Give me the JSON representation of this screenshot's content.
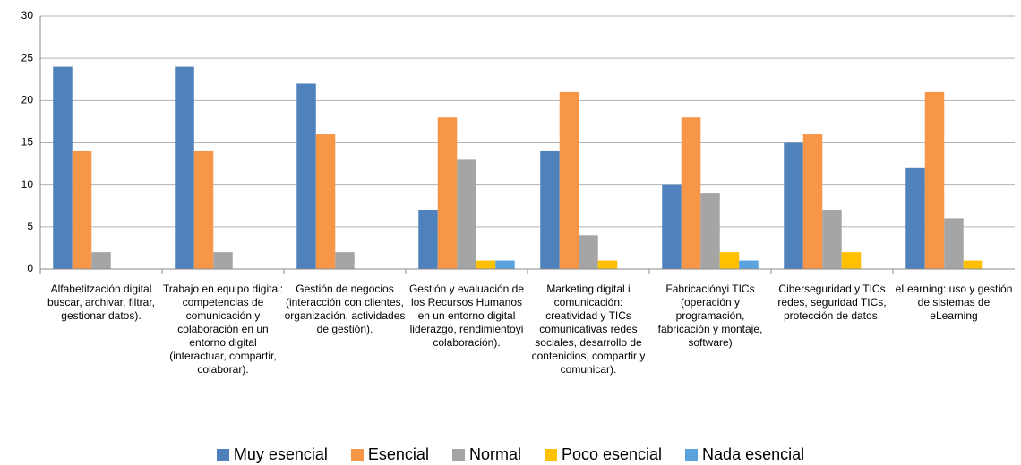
{
  "chart_data": {
    "type": "bar",
    "categories": [
      "Alfabetitzación digital buscar, archivar, filtrar, gestionar datos).",
      "Trabajo en equipo digital: competencias de comunicación y colaboración en un entorno digital (interactuar, compartir, colaborar).",
      "Gestión de negocios (interacción con clientes, organización, actividades de gestión).",
      "Gestión y evaluación de los Recursos Humanos en un entorno digital liderazgo, rendimientoyi colaboración).",
      "Marketing digital i comunicación: creatividad y TICs comunicativas redes sociales, desarrollo de contenidios, compartir y comunicar).",
      "Fabricaciónyi TICs (operación y programación, fabricación y montaje, software)",
      "Ciberseguridad y TICs redes, seguridad TICs, protección de datos.",
      "eLearning: uso y gestión de sistemas de eLearning"
    ],
    "series": [
      {
        "name": "Muy esencial",
        "color": "#4f81bd",
        "values": [
          24,
          24,
          22,
          7,
          14,
          10,
          15,
          12
        ]
      },
      {
        "name": "Esencial",
        "color": "#f79646",
        "values": [
          14,
          14,
          16,
          18,
          21,
          18,
          16,
          21
        ]
      },
      {
        "name": "Normal",
        "color": "#a5a5a5",
        "values": [
          2,
          2,
          2,
          13,
          4,
          9,
          7,
          6
        ]
      },
      {
        "name": "Poco esencial",
        "color": "#ffc000",
        "values": [
          0,
          0,
          0,
          1,
          1,
          2,
          2,
          1
        ]
      },
      {
        "name": "Nada esencial",
        "color": "#5ba3dc",
        "values": [
          0,
          0,
          0,
          1,
          0,
          1,
          0,
          0
        ]
      }
    ],
    "ylim": [
      0,
      30
    ],
    "yticks": [
      0,
      5,
      10,
      15,
      20,
      25,
      30
    ],
    "grid": true,
    "legend": "bottom"
  }
}
